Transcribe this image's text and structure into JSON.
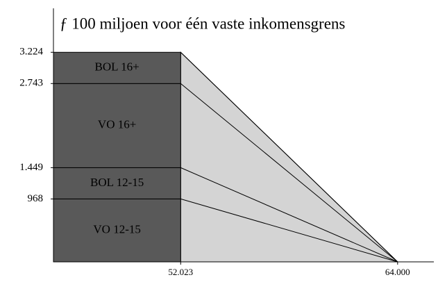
{
  "chart_data": {
    "type": "taper",
    "title": "ƒ 100 miljoen voor één vaste inkomensgrens",
    "series": [
      {
        "name": "VO 12-15",
        "value": 968
      },
      {
        "name": "BOL 12-15",
        "value": 481
      },
      {
        "name": "VO 16+",
        "value": 1294
      },
      {
        "name": "BOL 16+",
        "value": 481
      }
    ],
    "block_color": "#595959",
    "taper_color": "#d4d4d4",
    "block_end": 52023,
    "taper_end": 64000,
    "xlim": [
      45000,
      66000
    ],
    "xticks": [
      {
        "value": 52023,
        "label": "52.023"
      },
      {
        "value": 64000,
        "label": "64.000"
      }
    ],
    "ylim": [
      0,
      3900
    ],
    "yticks": [
      {
        "value": 968,
        "label": "968"
      },
      {
        "value": 1449,
        "label": "1.449"
      },
      {
        "value": 2743,
        "label": "2.743"
      },
      {
        "value": 3224,
        "label": "3.224"
      }
    ]
  }
}
